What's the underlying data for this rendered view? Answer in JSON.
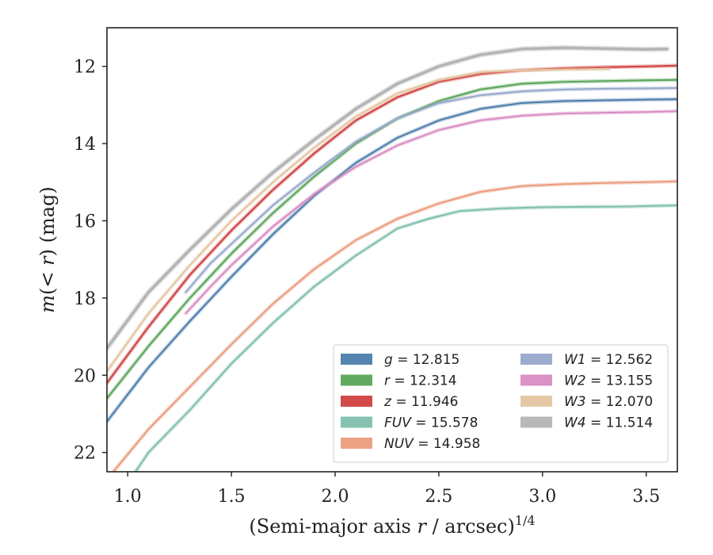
{
  "chart_data": {
    "type": "line",
    "title": "",
    "xlabel": "(Semi-major axis r / arcsec)^1/4",
    "xlabel_parts": {
      "pre": "(Semi-major axis ",
      "var": "r",
      "post": " / arcsec)",
      "sup": "1/4"
    },
    "ylabel": "m(< r) (mag)",
    "ylabel_parts": {
      "m": "m",
      "open": "(",
      "lt": "< ",
      "r": "r",
      "close": ")",
      "unit": " (mag)"
    },
    "xlim": [
      0.9,
      3.65
    ],
    "ylim": [
      22.5,
      11.0
    ],
    "y_inverted": true,
    "grid": false,
    "legend_position": "lower-right",
    "xticks": [
      1.0,
      1.5,
      2.0,
      2.5,
      3.0,
      3.5
    ],
    "xtick_labels": [
      "1.0",
      "1.5",
      "2.0",
      "2.5",
      "3.0",
      "3.5"
    ],
    "yticks": [
      12,
      14,
      16,
      18,
      20,
      22
    ],
    "ytick_labels": [
      "12",
      "14",
      "16",
      "18",
      "20",
      "22"
    ],
    "series": [
      {
        "name": "g",
        "label_var": "g",
        "label_val": "= 12.815",
        "color": "#4c7eab",
        "x": [
          0.9,
          1.1,
          1.3,
          1.5,
          1.7,
          1.9,
          2.1,
          2.3,
          2.5,
          2.7,
          2.9,
          3.1,
          3.3,
          3.5,
          3.65
        ],
        "y": [
          21.2,
          19.8,
          18.6,
          17.45,
          16.35,
          15.35,
          14.5,
          13.85,
          13.4,
          13.1,
          12.95,
          12.9,
          12.88,
          12.86,
          12.85
        ]
      },
      {
        "name": "r",
        "label_var": "r",
        "label_val": "= 12.314",
        "color": "#5aa55a",
        "x": [
          0.9,
          1.1,
          1.3,
          1.5,
          1.7,
          1.9,
          2.1,
          2.3,
          2.5,
          2.7,
          2.9,
          3.1,
          3.3,
          3.5,
          3.65
        ],
        "y": [
          20.6,
          19.25,
          18.0,
          16.85,
          15.8,
          14.85,
          14.0,
          13.35,
          12.9,
          12.6,
          12.45,
          12.4,
          12.38,
          12.36,
          12.35
        ]
      },
      {
        "name": "z",
        "label_var": "z",
        "label_val": "= 11.946",
        "color": "#d04040",
        "x": [
          0.9,
          1.1,
          1.3,
          1.5,
          1.7,
          1.9,
          2.1,
          2.3,
          2.5,
          2.7,
          2.9,
          3.1,
          3.3,
          3.5,
          3.65
        ],
        "y": [
          20.2,
          18.75,
          17.4,
          16.25,
          15.2,
          14.25,
          13.4,
          12.8,
          12.4,
          12.2,
          12.1,
          12.05,
          12.02,
          12.0,
          11.98
        ]
      },
      {
        "name": "FUV",
        "label_var": "FUV",
        "label_val": "= 15.578",
        "color": "#7fbfad",
        "x": [
          1.0,
          1.1,
          1.3,
          1.5,
          1.7,
          1.9,
          2.1,
          2.3,
          2.45,
          2.6,
          2.8,
          3.0,
          3.2,
          3.41,
          3.65
        ],
        "y": [
          22.8,
          22.0,
          20.9,
          19.7,
          18.65,
          17.7,
          16.9,
          16.2,
          15.95,
          15.75,
          15.68,
          15.65,
          15.64,
          15.63,
          15.6
        ]
      },
      {
        "name": "NUV",
        "label_var": "NUV",
        "label_val": "= 14.958",
        "color": "#eb9c7c",
        "x": [
          0.9,
          1.1,
          1.3,
          1.5,
          1.7,
          1.9,
          2.1,
          2.3,
          2.5,
          2.7,
          2.9,
          3.1,
          3.3,
          3.5,
          3.65
        ],
        "y": [
          22.7,
          21.4,
          20.3,
          19.2,
          18.15,
          17.25,
          16.5,
          15.95,
          15.55,
          15.25,
          15.1,
          15.05,
          15.02,
          15.0,
          14.98
        ]
      },
      {
        "name": "W1",
        "label_var": "W1",
        "label_val": "= 12.562",
        "color": "#97a8cc",
        "x": [
          1.28,
          1.4,
          1.5,
          1.7,
          1.9,
          2.1,
          2.3,
          2.5,
          2.7,
          2.9,
          3.1,
          3.3,
          3.5,
          3.65
        ],
        "y": [
          17.85,
          17.1,
          16.6,
          15.6,
          14.75,
          13.95,
          13.35,
          12.95,
          12.75,
          12.65,
          12.6,
          12.58,
          12.57,
          12.56
        ]
      },
      {
        "name": "W2",
        "label_var": "W2",
        "label_val": "= 13.155",
        "color": "#d98cc2",
        "x": [
          1.28,
          1.4,
          1.5,
          1.7,
          1.9,
          2.1,
          2.3,
          2.5,
          2.7,
          2.9,
          3.1,
          3.3,
          3.5,
          3.65
        ],
        "y": [
          18.4,
          17.7,
          17.15,
          16.15,
          15.3,
          14.6,
          14.05,
          13.65,
          13.4,
          13.28,
          13.22,
          13.2,
          13.18,
          13.16
        ]
      },
      {
        "name": "W3",
        "label_var": "W3",
        "label_val": "= 12.070",
        "color": "#e3c5a0",
        "x": [
          0.9,
          1.1,
          1.3,
          1.5,
          1.7,
          1.9,
          2.1,
          2.3,
          2.5,
          2.7,
          2.9,
          3.1,
          3.32
        ],
        "y": [
          19.9,
          18.4,
          17.15,
          16.0,
          15.0,
          14.1,
          13.3,
          12.7,
          12.35,
          12.15,
          12.1,
          12.08,
          12.07
        ]
      },
      {
        "name": "W4",
        "label_var": "W4",
        "label_val": "= 11.514",
        "color": "#b4b4b4",
        "x": [
          0.9,
          1.1,
          1.3,
          1.5,
          1.7,
          1.9,
          2.1,
          2.3,
          2.5,
          2.7,
          2.9,
          3.1,
          3.3,
          3.5,
          3.6
        ],
        "y": [
          19.3,
          17.85,
          16.75,
          15.7,
          14.75,
          13.9,
          13.1,
          12.45,
          12.0,
          11.7,
          11.55,
          11.52,
          11.54,
          11.56,
          11.55
        ]
      }
    ]
  }
}
